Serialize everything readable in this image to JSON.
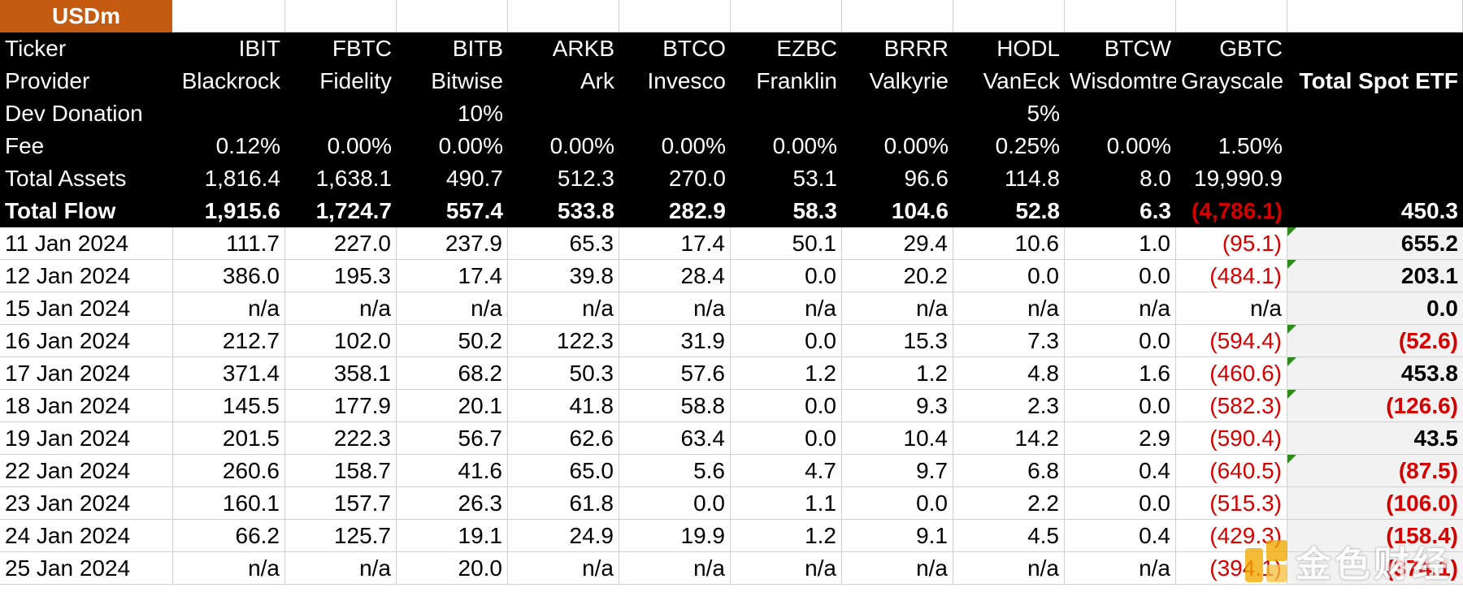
{
  "header_label": "USDm",
  "labels": {
    "ticker": "Ticker",
    "provider": "Provider",
    "dev_donation": "Dev Donation",
    "fee": "Fee",
    "total_assets": "Total Assets",
    "total_flow": "Total Flow",
    "total_spot_etf": "Total Spot ETF"
  },
  "funds": [
    {
      "ticker": "IBIT",
      "provider": "Blackrock",
      "dev_donation": "",
      "fee": "0.12%",
      "total_assets": "1,816.4",
      "total_flow": "1,915.6",
      "flow_negative": false
    },
    {
      "ticker": "FBTC",
      "provider": "Fidelity",
      "dev_donation": "",
      "fee": "0.00%",
      "total_assets": "1,638.1",
      "total_flow": "1,724.7",
      "flow_negative": false
    },
    {
      "ticker": "BITB",
      "provider": "Bitwise",
      "dev_donation": "10%",
      "fee": "0.00%",
      "total_assets": "490.7",
      "total_flow": "557.4",
      "flow_negative": false
    },
    {
      "ticker": "ARKB",
      "provider": "Ark",
      "dev_donation": "",
      "fee": "0.00%",
      "total_assets": "512.3",
      "total_flow": "533.8",
      "flow_negative": false
    },
    {
      "ticker": "BTCO",
      "provider": "Invesco",
      "dev_donation": "",
      "fee": "0.00%",
      "total_assets": "270.0",
      "total_flow": "282.9",
      "flow_negative": false
    },
    {
      "ticker": "EZBC",
      "provider": "Franklin",
      "dev_donation": "",
      "fee": "0.00%",
      "total_assets": "53.1",
      "total_flow": "58.3",
      "flow_negative": false
    },
    {
      "ticker": "BRRR",
      "provider": "Valkyrie",
      "dev_donation": "",
      "fee": "0.00%",
      "total_assets": "96.6",
      "total_flow": "104.6",
      "flow_negative": false
    },
    {
      "ticker": "HODL",
      "provider": "VanEck",
      "dev_donation": "5%",
      "fee": "0.25%",
      "total_assets": "114.8",
      "total_flow": "52.8",
      "flow_negative": false
    },
    {
      "ticker": "BTCW",
      "provider": "Wisdomtree",
      "dev_donation": "",
      "fee": "0.00%",
      "total_assets": "8.0",
      "total_flow": "6.3",
      "flow_negative": false
    },
    {
      "ticker": "GBTC",
      "provider": "Grayscale",
      "dev_donation": "",
      "fee": "1.50%",
      "total_assets": "19,990.9",
      "total_flow": "(4,786.1)",
      "flow_negative": true
    }
  ],
  "grand_total_flow": "450.3",
  "rows": [
    {
      "date": "11 Jan 2024",
      "values": [
        "111.7",
        "227.0",
        "237.9",
        "65.3",
        "17.4",
        "50.1",
        "29.4",
        "10.6",
        "1.0",
        "(95.1)"
      ],
      "total": "655.2",
      "flag": true
    },
    {
      "date": "12 Jan 2024",
      "values": [
        "386.0",
        "195.3",
        "17.4",
        "39.8",
        "28.4",
        "0.0",
        "20.2",
        "0.0",
        "0.0",
        "(484.1)"
      ],
      "total": "203.1",
      "flag": true
    },
    {
      "date": "15 Jan 2024",
      "values": [
        "n/a",
        "n/a",
        "n/a",
        "n/a",
        "n/a",
        "n/a",
        "n/a",
        "n/a",
        "n/a",
        "n/a"
      ],
      "total": "0.0",
      "flag": false
    },
    {
      "date": "16 Jan 2024",
      "values": [
        "212.7",
        "102.0",
        "50.2",
        "122.3",
        "31.9",
        "0.0",
        "15.3",
        "7.3",
        "0.0",
        "(594.4)"
      ],
      "total": "(52.6)",
      "flag": true
    },
    {
      "date": "17 Jan 2024",
      "values": [
        "371.4",
        "358.1",
        "68.2",
        "50.3",
        "57.6",
        "1.2",
        "1.2",
        "4.8",
        "1.6",
        "(460.6)"
      ],
      "total": "453.8",
      "flag": true
    },
    {
      "date": "18 Jan 2024",
      "values": [
        "145.5",
        "177.9",
        "20.1",
        "41.8",
        "58.8",
        "0.0",
        "9.3",
        "2.3",
        "0.0",
        "(582.3)"
      ],
      "total": "(126.6)",
      "flag": true
    },
    {
      "date": "19 Jan 2024",
      "values": [
        "201.5",
        "222.3",
        "56.7",
        "62.6",
        "63.4",
        "0.0",
        "10.4",
        "14.2",
        "2.9",
        "(590.4)"
      ],
      "total": "43.5",
      "flag": false
    },
    {
      "date": "22 Jan 2024",
      "values": [
        "260.6",
        "158.7",
        "41.6",
        "65.0",
        "5.6",
        "4.7",
        "9.7",
        "6.8",
        "0.4",
        "(640.5)"
      ],
      "total": "(87.5)",
      "flag": true
    },
    {
      "date": "23 Jan 2024",
      "values": [
        "160.1",
        "157.7",
        "26.3",
        "61.8",
        "0.0",
        "1.1",
        "0.0",
        "2.2",
        "0.0",
        "(515.3)"
      ],
      "total": "(106.0)",
      "flag": false
    },
    {
      "date": "24 Jan 2024",
      "values": [
        "66.2",
        "125.7",
        "19.1",
        "24.9",
        "19.9",
        "1.2",
        "9.1",
        "4.5",
        "0.4",
        "(429.3)"
      ],
      "total": "(158.4)",
      "flag": false
    },
    {
      "date": "25 Jan 2024",
      "values": [
        "n/a",
        "n/a",
        "20.0",
        "n/a",
        "n/a",
        "n/a",
        "n/a",
        "n/a",
        "n/a",
        "(394.1)"
      ],
      "total": "(374.1)",
      "flag": false
    }
  ],
  "watermark": {
    "text": "金色财经",
    "logo": "jinse-logo-icon"
  },
  "colors": {
    "header_bg": "#000000",
    "usd_bg": "#c55a11",
    "negative": "#d40000",
    "total_bg": "#f2f2f2",
    "flag": "#2e8b1e"
  }
}
